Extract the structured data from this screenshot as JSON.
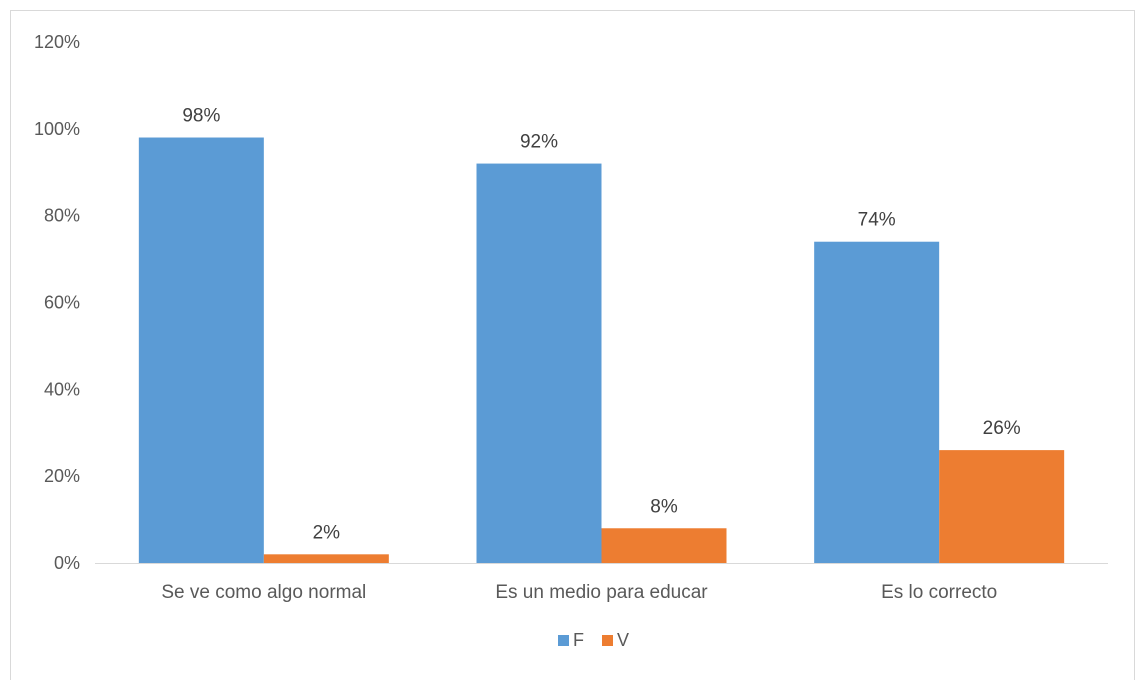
{
  "chart_data": {
    "type": "bar",
    "categories": [
      "Se ve como algo normal",
      "Es un medio para educar",
      "Es lo correcto"
    ],
    "series": [
      {
        "name": "F",
        "values": [
          98,
          92,
          74
        ],
        "labels": [
          "98%",
          "92%",
          "74%"
        ],
        "color": "#5b9bd5"
      },
      {
        "name": "V",
        "values": [
          2,
          8,
          26
        ],
        "labels": [
          "2%",
          "8%",
          "26%"
        ],
        "color": "#ed7d31"
      }
    ],
    "y_ticks": [
      "0%",
      "20%",
      "40%",
      "60%",
      "80%",
      "100%",
      "120%"
    ],
    "ylim": [
      0,
      120
    ],
    "grid": false,
    "legend_position": "bottom",
    "title": "",
    "xlabel": "",
    "ylabel": ""
  }
}
